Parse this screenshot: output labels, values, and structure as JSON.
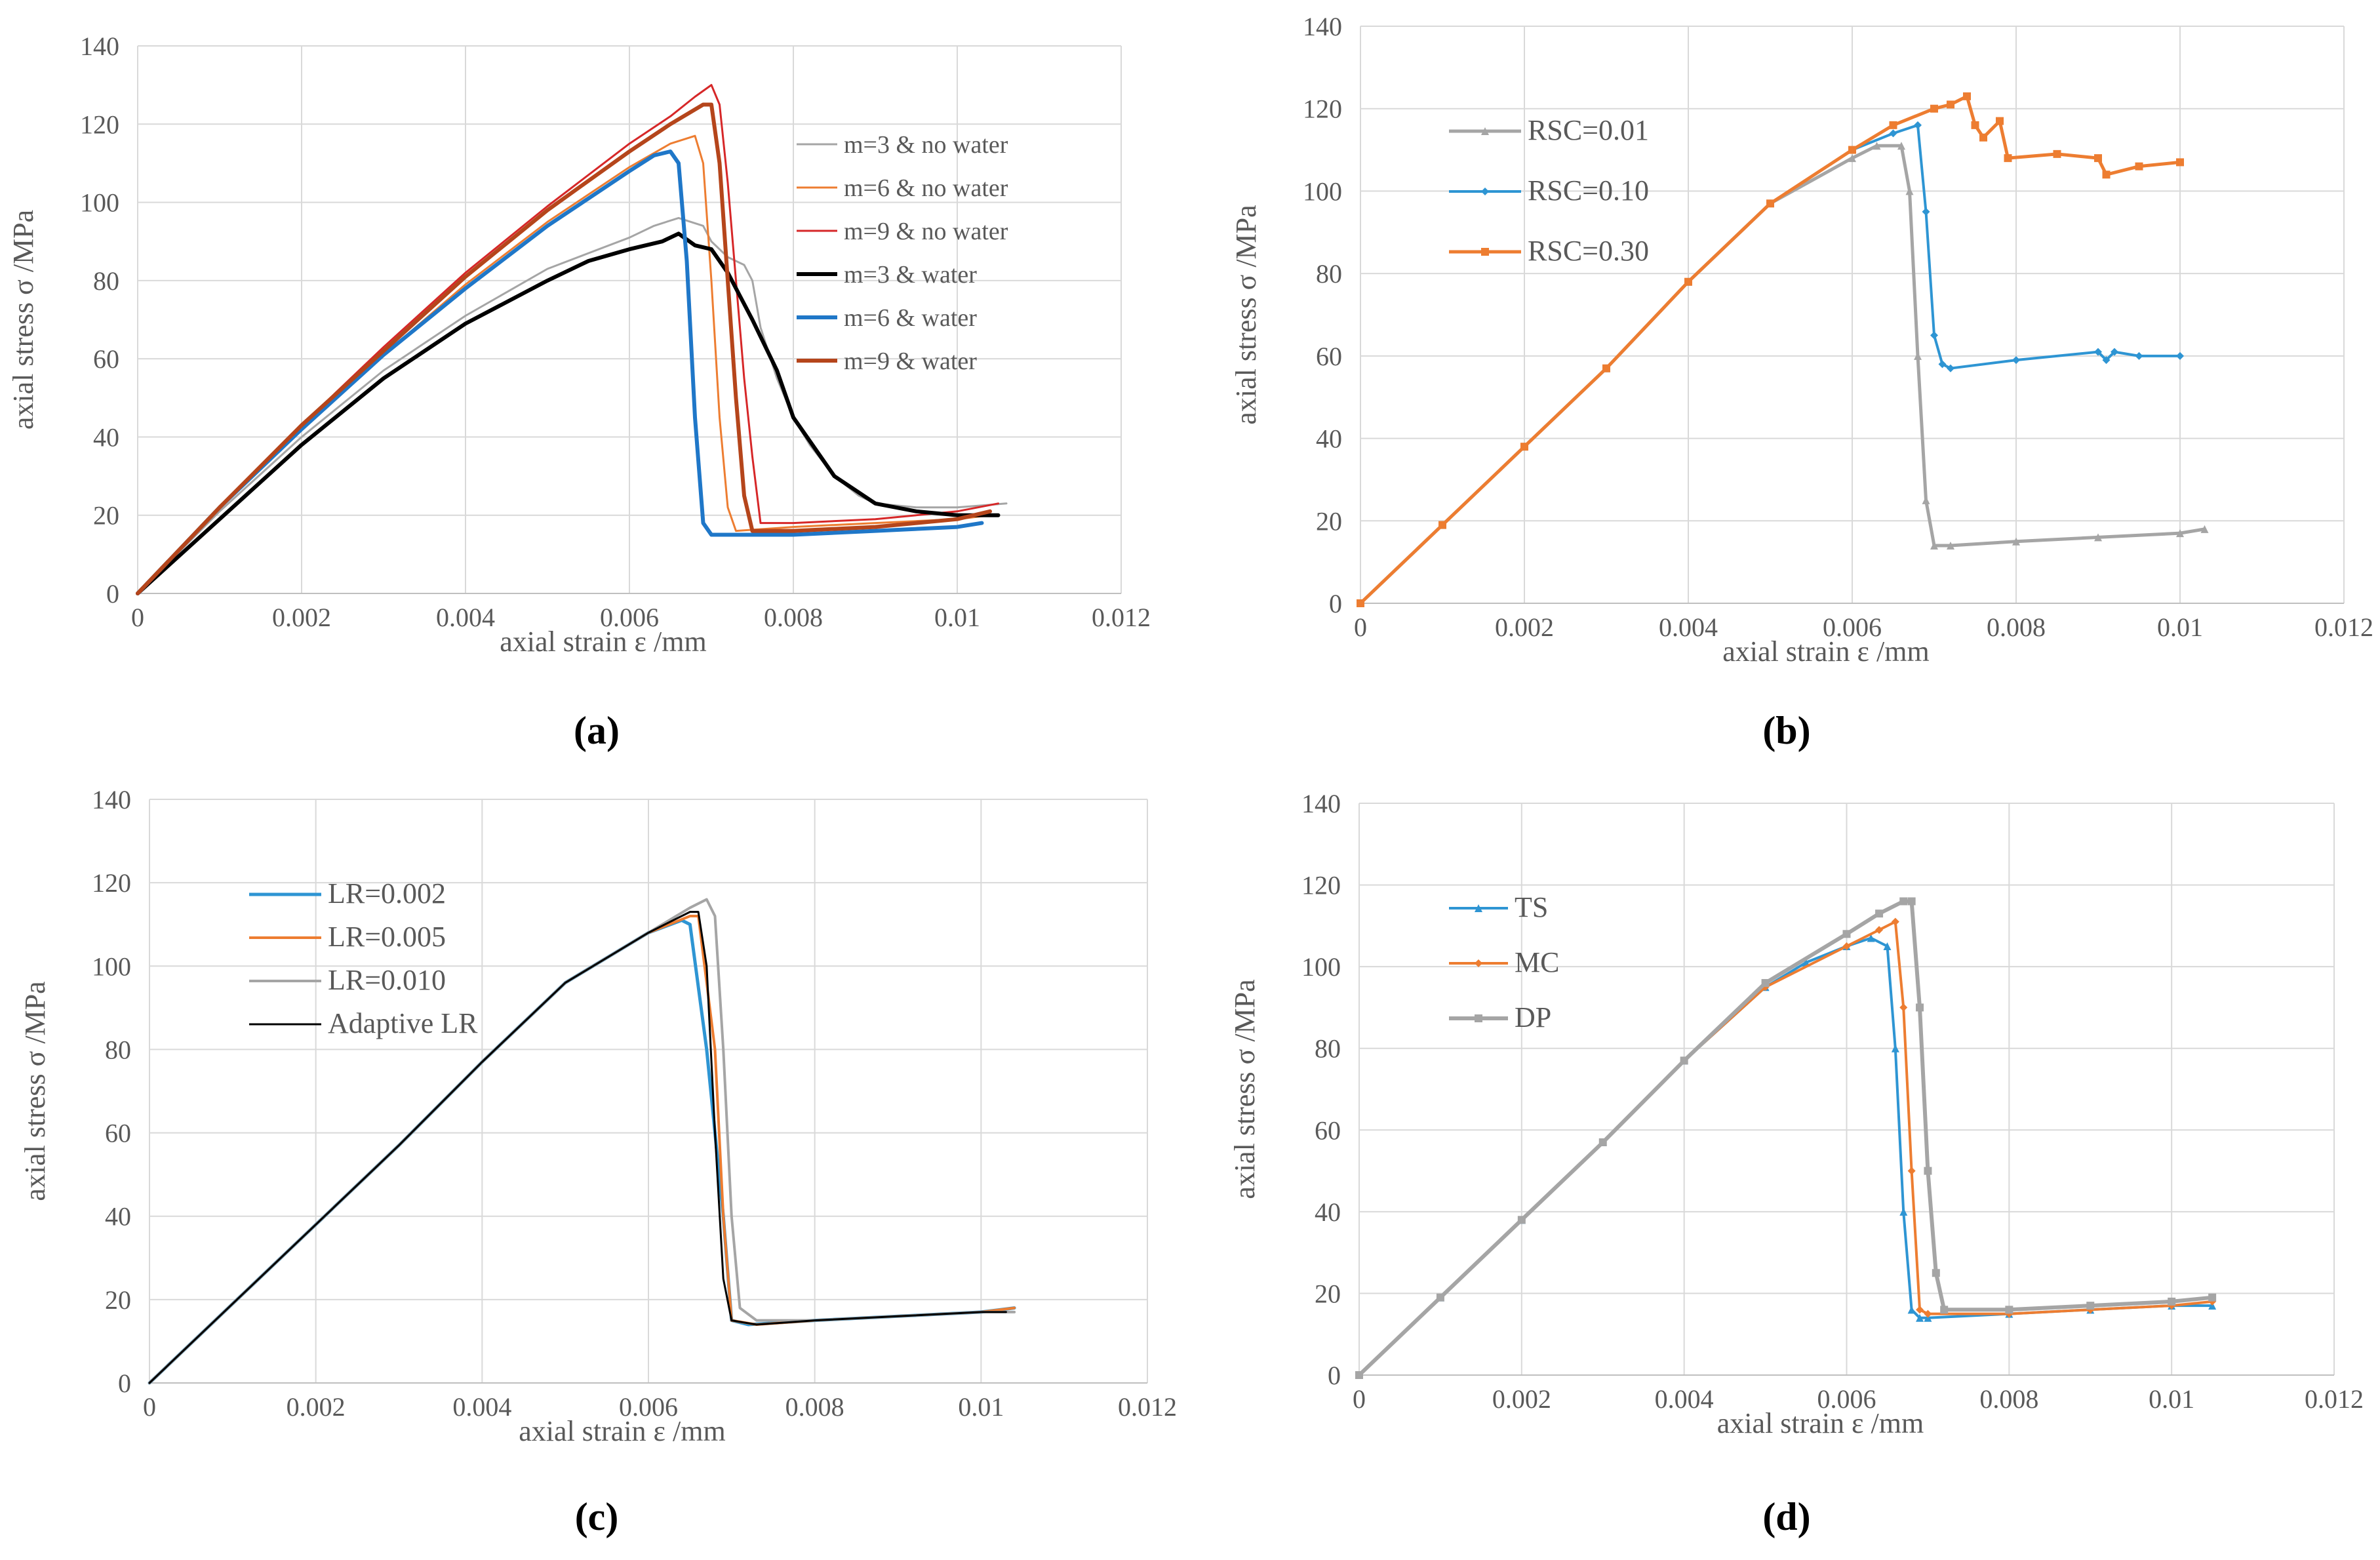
{
  "captions": [
    "(a)",
    "(b)",
    "(c)",
    "(d)"
  ],
  "chart_data": [
    {
      "id": "a",
      "type": "line",
      "xlabel": "axial strain ε /mm",
      "ylabel": "axial stress σ /MPa",
      "xlim": [
        0,
        0.012
      ],
      "ylim": [
        0,
        140
      ],
      "xticks": [
        0,
        0.002,
        0.004,
        0.006,
        0.008,
        0.01,
        0.012
      ],
      "xtick_labels": [
        "0",
        "0.002",
        "0.004",
        "0.006",
        "0.008",
        "0.01",
        "0.012"
      ],
      "yticks": [
        0,
        20,
        40,
        60,
        80,
        100,
        120,
        140
      ],
      "ytick_labels": [
        "0",
        "20",
        "40",
        "60",
        "80",
        "100",
        "120",
        "140"
      ],
      "grid": true,
      "legend_position": "top-right",
      "series": [
        {
          "name": "m=3 & no water",
          "color": "#a5a5a5",
          "width": 3,
          "marker": "none",
          "x": [
            0,
            0.001,
            0.002,
            0.003,
            0.004,
            0.005,
            0.0055,
            0.006,
            0.0063,
            0.0066,
            0.0069,
            0.007,
            0.0072,
            0.0074,
            0.0075,
            0.0076,
            0.0078,
            0.008,
            0.0082,
            0.0085,
            0.0088,
            0.009,
            0.0095,
            0.01,
            0.0106
          ],
          "y": [
            0,
            21,
            40,
            57,
            71,
            83,
            87,
            91,
            94,
            96,
            94,
            90,
            86,
            84,
            80,
            68,
            55,
            45,
            38,
            30,
            25,
            23,
            22,
            22,
            23
          ]
        },
        {
          "name": "m=6 & no water",
          "color": "#ed7d31",
          "width": 3,
          "marker": "none",
          "x": [
            0,
            0.001,
            0.002,
            0.003,
            0.004,
            0.005,
            0.006,
            0.0065,
            0.0068,
            0.0069,
            0.007,
            0.0071,
            0.0072,
            0.0073,
            0.008,
            0.009,
            0.01,
            0.0104
          ],
          "y": [
            0,
            22,
            42,
            61,
            79,
            95,
            109,
            115,
            117,
            110,
            80,
            45,
            22,
            16,
            17,
            18,
            19,
            20
          ]
        },
        {
          "name": "m=9 & no water",
          "color": "#d62728",
          "width": 3,
          "marker": "none",
          "x": [
            0,
            0.001,
            0.002,
            0.003,
            0.004,
            0.005,
            0.006,
            0.0065,
            0.0068,
            0.007,
            0.0071,
            0.0072,
            0.0073,
            0.0074,
            0.0075,
            0.0076,
            0.008,
            0.009,
            0.01,
            0.0105
          ],
          "y": [
            0,
            22,
            43,
            63,
            82,
            99,
            115,
            122,
            127,
            130,
            125,
            105,
            80,
            55,
            35,
            18,
            18,
            19,
            21,
            23
          ]
        },
        {
          "name": "m=3 & water",
          "color": "#000000",
          "width": 6,
          "marker": "none",
          "x": [
            0,
            0.001,
            0.002,
            0.003,
            0.004,
            0.005,
            0.0055,
            0.006,
            0.0064,
            0.0066,
            0.0068,
            0.007,
            0.0072,
            0.0075,
            0.0078,
            0.008,
            0.0085,
            0.009,
            0.0095,
            0.01,
            0.0105
          ],
          "y": [
            0,
            19,
            38,
            55,
            69,
            80,
            85,
            88,
            90,
            92,
            89,
            88,
            82,
            70,
            57,
            45,
            30,
            23,
            21,
            20,
            20
          ]
        },
        {
          "name": "m=6 & water",
          "color": "#1f77c8",
          "width": 6,
          "marker": "none",
          "x": [
            0,
            0.001,
            0.002,
            0.003,
            0.004,
            0.005,
            0.0055,
            0.006,
            0.0063,
            0.0065,
            0.0066,
            0.0067,
            0.0068,
            0.0069,
            0.007,
            0.0072,
            0.008,
            0.009,
            0.01,
            0.0103
          ],
          "y": [
            0,
            22,
            42,
            61,
            78,
            94,
            101,
            108,
            112,
            113,
            110,
            85,
            45,
            18,
            15,
            15,
            15,
            16,
            17,
            18
          ]
        },
        {
          "name": "m=9 & water",
          "color": "#b5451b",
          "width": 6,
          "marker": "none",
          "x": [
            0,
            0.001,
            0.002,
            0.003,
            0.004,
            0.005,
            0.006,
            0.0065,
            0.0069,
            0.007,
            0.0071,
            0.0072,
            0.0073,
            0.0074,
            0.0075,
            0.008,
            0.009,
            0.01,
            0.0104
          ],
          "y": [
            0,
            22,
            43,
            62,
            81,
            98,
            113,
            120,
            125,
            125,
            110,
            80,
            50,
            25,
            16,
            16,
            17,
            19,
            21
          ]
        }
      ]
    },
    {
      "id": "b",
      "type": "line",
      "xlabel": "axial strain ε /mm",
      "ylabel": "axial stress σ /MPa",
      "xlim": [
        0,
        0.012
      ],
      "ylim": [
        0,
        140
      ],
      "xticks": [
        0,
        0.002,
        0.004,
        0.006,
        0.008,
        0.01,
        0.012
      ],
      "xtick_labels": [
        "0",
        "0.002",
        "0.004",
        "0.006",
        "0.008",
        "0.01",
        "0.012"
      ],
      "yticks": [
        0,
        20,
        40,
        60,
        80,
        100,
        120,
        140
      ],
      "ytick_labels": [
        "0",
        "20",
        "40",
        "60",
        "80",
        "100",
        "120",
        "140"
      ],
      "grid": true,
      "legend_position": "top-left",
      "series": [
        {
          "name": "RSC=0.01",
          "color": "#a5a5a5",
          "width": 5,
          "marker": "triangle",
          "x": [
            0,
            0.001,
            0.002,
            0.003,
            0.004,
            0.005,
            0.006,
            0.0063,
            0.0066,
            0.0067,
            0.0068,
            0.0069,
            0.007,
            0.0072,
            0.008,
            0.009,
            0.01,
            0.0103
          ],
          "y": [
            0,
            19,
            38,
            57,
            78,
            97,
            108,
            111,
            111,
            100,
            60,
            25,
            14,
            14,
            15,
            16,
            17,
            18
          ]
        },
        {
          "name": "RSC=0.10",
          "color": "#2e95d3",
          "width": 4,
          "marker": "diamond",
          "x": [
            0,
            0.001,
            0.002,
            0.003,
            0.004,
            0.005,
            0.006,
            0.0065,
            0.0068,
            0.0069,
            0.007,
            0.0071,
            0.0072,
            0.008,
            0.009,
            0.0091,
            0.0092,
            0.0095,
            0.01
          ],
          "y": [
            0,
            19,
            38,
            57,
            78,
            97,
            110,
            114,
            116,
            95,
            65,
            58,
            57,
            59,
            61,
            59,
            61,
            60,
            60
          ]
        },
        {
          "name": "RSC=0.30",
          "color": "#ed7d31",
          "width": 5,
          "marker": "square",
          "x": [
            0,
            0.001,
            0.002,
            0.003,
            0.004,
            0.005,
            0.006,
            0.0065,
            0.007,
            0.0072,
            0.0074,
            0.0075,
            0.0076,
            0.0078,
            0.0079,
            0.0085,
            0.009,
            0.0091,
            0.0095,
            0.01
          ],
          "y": [
            0,
            19,
            38,
            57,
            78,
            97,
            110,
            116,
            120,
            121,
            123,
            116,
            113,
            117,
            108,
            109,
            108,
            104,
            106,
            107
          ]
        }
      ]
    },
    {
      "id": "c",
      "type": "line",
      "xlabel": "axial strain ε /mm",
      "ylabel": "axial stress σ /MPa",
      "xlim": [
        0,
        0.012
      ],
      "ylim": [
        0,
        140
      ],
      "xticks": [
        0,
        0.002,
        0.004,
        0.006,
        0.008,
        0.01,
        0.012
      ],
      "xtick_labels": [
        "0",
        "0.002",
        "0.004",
        "0.006",
        "0.008",
        "0.01",
        "0.012"
      ],
      "yticks": [
        0,
        20,
        40,
        60,
        80,
        100,
        120,
        140
      ],
      "ytick_labels": [
        "0",
        "20",
        "40",
        "60",
        "80",
        "100",
        "120",
        "140"
      ],
      "grid": true,
      "legend_position": "top-left",
      "series": [
        {
          "name": "LR=0.002",
          "color": "#2e95d3",
          "width": 5,
          "marker": "none",
          "x": [
            0,
            0.001,
            0.002,
            0.003,
            0.004,
            0.005,
            0.006,
            0.0064,
            0.0065,
            0.0067,
            0.0069,
            0.007,
            0.0072,
            0.008,
            0.009,
            0.01,
            0.0104
          ],
          "y": [
            0,
            19,
            38,
            57,
            77,
            96,
            108,
            111,
            110,
            80,
            40,
            15,
            14,
            15,
            16,
            17,
            18
          ]
        },
        {
          "name": "LR=0.005",
          "color": "#ed7d31",
          "width": 4,
          "marker": "none",
          "x": [
            0,
            0.001,
            0.002,
            0.003,
            0.004,
            0.005,
            0.006,
            0.0065,
            0.0066,
            0.0068,
            0.0069,
            0.007,
            0.0073,
            0.008,
            0.009,
            0.01,
            0.0104
          ],
          "y": [
            0,
            19,
            38,
            57,
            77,
            96,
            108,
            112,
            112,
            80,
            40,
            15,
            14,
            15,
            16,
            17,
            18
          ]
        },
        {
          "name": "LR=0.010",
          "color": "#a5a5a5",
          "width": 4,
          "marker": "none",
          "x": [
            0,
            0.001,
            0.002,
            0.003,
            0.004,
            0.005,
            0.006,
            0.0065,
            0.0067,
            0.0068,
            0.0069,
            0.007,
            0.0071,
            0.0073,
            0.008,
            0.009,
            0.01,
            0.0104
          ],
          "y": [
            0,
            19,
            38,
            57,
            77,
            96,
            108,
            114,
            116,
            112,
            80,
            40,
            18,
            15,
            15,
            16,
            17,
            17
          ]
        },
        {
          "name": "Adaptive LR",
          "color": "#000000",
          "width": 3,
          "marker": "none",
          "x": [
            0,
            0.001,
            0.002,
            0.003,
            0.004,
            0.005,
            0.006,
            0.0065,
            0.0066,
            0.0067,
            0.0068,
            0.0069,
            0.007,
            0.0073,
            0.008,
            0.009,
            0.01,
            0.0103
          ],
          "y": [
            0,
            19,
            38,
            57,
            77,
            96,
            108,
            113,
            113,
            100,
            60,
            25,
            15,
            14,
            15,
            16,
            17,
            17
          ]
        }
      ]
    },
    {
      "id": "d",
      "type": "line",
      "xlabel": "axial strain ε /mm",
      "ylabel": "axial stress σ /MPa",
      "xlim": [
        0,
        0.012
      ],
      "ylim": [
        0,
        140
      ],
      "xticks": [
        0,
        0.002,
        0.004,
        0.006,
        0.008,
        0.01,
        0.012
      ],
      "xtick_labels": [
        "0",
        "0.002",
        "0.004",
        "0.006",
        "0.008",
        "0.01",
        "0.012"
      ],
      "yticks": [
        0,
        20,
        40,
        60,
        80,
        100,
        120,
        140
      ],
      "ytick_labels": [
        "0",
        "20",
        "40",
        "60",
        "80",
        "100",
        "120",
        "140"
      ],
      "grid": true,
      "legend_position": "top-left",
      "series": [
        {
          "name": "TS",
          "color": "#2e95d3",
          "width": 4,
          "marker": "triangle",
          "x": [
            0,
            0.001,
            0.002,
            0.003,
            0.004,
            0.005,
            0.0055,
            0.006,
            0.0063,
            0.0065,
            0.0066,
            0.0067,
            0.0068,
            0.0069,
            0.007,
            0.008,
            0.009,
            0.01,
            0.0105
          ],
          "y": [
            0,
            19,
            38,
            57,
            77,
            95,
            101,
            105,
            107,
            105,
            80,
            40,
            16,
            14,
            14,
            15,
            16,
            17,
            17
          ]
        },
        {
          "name": "MC",
          "color": "#ed7d31",
          "width": 4,
          "marker": "diamond",
          "x": [
            0,
            0.001,
            0.002,
            0.003,
            0.004,
            0.005,
            0.006,
            0.0064,
            0.0066,
            0.0067,
            0.0068,
            0.0069,
            0.007,
            0.008,
            0.009,
            0.01,
            0.0105
          ],
          "y": [
            0,
            19,
            38,
            57,
            77,
            95,
            105,
            109,
            111,
            90,
            50,
            16,
            15,
            15,
            16,
            17,
            18
          ]
        },
        {
          "name": "DP",
          "color": "#a5a5a5",
          "width": 6,
          "marker": "square",
          "x": [
            0,
            0.001,
            0.002,
            0.003,
            0.004,
            0.005,
            0.006,
            0.0064,
            0.0067,
            0.0068,
            0.0069,
            0.007,
            0.0071,
            0.0072,
            0.008,
            0.009,
            0.01,
            0.0105
          ],
          "y": [
            0,
            19,
            38,
            57,
            77,
            96,
            108,
            113,
            116,
            116,
            90,
            50,
            25,
            16,
            16,
            17,
            18,
            19
          ]
        }
      ]
    }
  ]
}
